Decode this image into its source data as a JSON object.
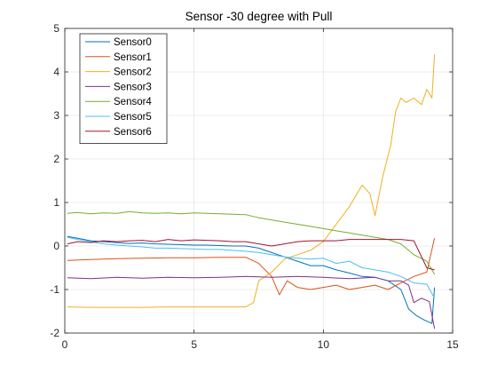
{
  "chart_data": {
    "type": "line",
    "title": "Sensor -30 degree with Pull",
    "xlabel": "",
    "ylabel": "",
    "xlim": [
      0,
      15
    ],
    "ylim": [
      -2,
      5
    ],
    "xticks": [
      0,
      5,
      10,
      15
    ],
    "yticks": [
      -2,
      -1,
      0,
      1,
      2,
      3,
      4,
      5
    ],
    "grid": true,
    "legend_position": "top-left",
    "series": [
      {
        "name": "Sensor0",
        "color": "#0072BD",
        "points": [
          [
            0.1,
            0.22
          ],
          [
            0.5,
            0.18
          ],
          [
            1.0,
            0.12
          ],
          [
            1.5,
            0.1
          ],
          [
            2.0,
            0.08
          ],
          [
            2.5,
            0.06
          ],
          [
            3.0,
            0.07
          ],
          [
            3.5,
            0.05
          ],
          [
            4.0,
            0.04
          ],
          [
            4.5,
            0.03
          ],
          [
            5.0,
            0.02
          ],
          [
            5.5,
            0.02
          ],
          [
            6.0,
            0.01
          ],
          [
            6.5,
            0.0
          ],
          [
            7.0,
            0.0
          ],
          [
            7.5,
            -0.05
          ],
          [
            8.0,
            -0.15
          ],
          [
            8.5,
            -0.25
          ],
          [
            9.0,
            -0.35
          ],
          [
            9.5,
            -0.45
          ],
          [
            10.0,
            -0.45
          ],
          [
            10.5,
            -0.55
          ],
          [
            11.0,
            -0.62
          ],
          [
            11.5,
            -0.7
          ],
          [
            12.0,
            -0.72
          ],
          [
            12.5,
            -0.8
          ],
          [
            13.0,
            -1.0
          ],
          [
            13.3,
            -1.45
          ],
          [
            13.6,
            -1.6
          ],
          [
            13.9,
            -1.7
          ],
          [
            14.2,
            -1.78
          ],
          [
            14.3,
            -0.95
          ]
        ]
      },
      {
        "name": "Sensor1",
        "color": "#D95319",
        "points": [
          [
            0.1,
            -0.33
          ],
          [
            1.0,
            -0.31
          ],
          [
            2.0,
            -0.29
          ],
          [
            3.0,
            -0.28
          ],
          [
            4.0,
            -0.27
          ],
          [
            5.0,
            -0.27
          ],
          [
            6.0,
            -0.26
          ],
          [
            7.0,
            -0.26
          ],
          [
            7.5,
            -0.4
          ],
          [
            8.0,
            -0.7
          ],
          [
            8.3,
            -1.12
          ],
          [
            8.6,
            -0.8
          ],
          [
            9.0,
            -0.95
          ],
          [
            9.5,
            -1.0
          ],
          [
            10.0,
            -0.95
          ],
          [
            10.5,
            -0.9
          ],
          [
            11.0,
            -1.0
          ],
          [
            11.5,
            -0.95
          ],
          [
            12.0,
            -0.9
          ],
          [
            12.5,
            -1.0
          ],
          [
            13.0,
            -0.85
          ],
          [
            13.5,
            -0.7
          ],
          [
            14.0,
            -0.6
          ],
          [
            14.3,
            0.18
          ]
        ]
      },
      {
        "name": "Sensor2",
        "color": "#EDB120",
        "points": [
          [
            0.1,
            -1.4
          ],
          [
            1.0,
            -1.41
          ],
          [
            2.0,
            -1.41
          ],
          [
            3.0,
            -1.41
          ],
          [
            4.0,
            -1.4
          ],
          [
            5.0,
            -1.4
          ],
          [
            6.0,
            -1.4
          ],
          [
            7.0,
            -1.4
          ],
          [
            7.3,
            -1.3
          ],
          [
            7.5,
            -0.8
          ],
          [
            8.0,
            -0.6
          ],
          [
            8.5,
            -0.3
          ],
          [
            9.0,
            -0.2
          ],
          [
            9.5,
            -0.1
          ],
          [
            10.0,
            0.1
          ],
          [
            10.5,
            0.5
          ],
          [
            11.0,
            0.9
          ],
          [
            11.3,
            1.2
          ],
          [
            11.5,
            1.4
          ],
          [
            11.8,
            1.2
          ],
          [
            12.0,
            0.7
          ],
          [
            12.3,
            1.6
          ],
          [
            12.6,
            2.3
          ],
          [
            12.8,
            3.1
          ],
          [
            13.0,
            3.4
          ],
          [
            13.2,
            3.3
          ],
          [
            13.5,
            3.4
          ],
          [
            13.8,
            3.25
          ],
          [
            14.0,
            3.6
          ],
          [
            14.2,
            3.4
          ],
          [
            14.3,
            4.4
          ]
        ]
      },
      {
        "name": "Sensor3",
        "color": "#7E2F8E",
        "points": [
          [
            0.1,
            -0.73
          ],
          [
            1.0,
            -0.75
          ],
          [
            2.0,
            -0.72
          ],
          [
            3.0,
            -0.74
          ],
          [
            4.0,
            -0.72
          ],
          [
            5.0,
            -0.73
          ],
          [
            6.0,
            -0.72
          ],
          [
            7.0,
            -0.7
          ],
          [
            8.0,
            -0.72
          ],
          [
            9.0,
            -0.7
          ],
          [
            10.0,
            -0.72
          ],
          [
            11.0,
            -0.75
          ],
          [
            12.0,
            -0.72
          ],
          [
            12.5,
            -0.8
          ],
          [
            13.0,
            -0.8
          ],
          [
            13.3,
            -0.9
          ],
          [
            13.5,
            -1.3
          ],
          [
            13.8,
            -1.2
          ],
          [
            14.1,
            -1.28
          ],
          [
            14.3,
            -1.9
          ]
        ]
      },
      {
        "name": "Sensor4",
        "color": "#77AC30",
        "points": [
          [
            0.1,
            0.75
          ],
          [
            0.5,
            0.77
          ],
          [
            1.0,
            0.74
          ],
          [
            1.5,
            0.76
          ],
          [
            2.0,
            0.75
          ],
          [
            2.5,
            0.79
          ],
          [
            3.0,
            0.76
          ],
          [
            3.5,
            0.75
          ],
          [
            4.0,
            0.76
          ],
          [
            4.5,
            0.74
          ],
          [
            5.0,
            0.76
          ],
          [
            5.5,
            0.75
          ],
          [
            6.0,
            0.74
          ],
          [
            6.5,
            0.73
          ],
          [
            7.0,
            0.72
          ],
          [
            7.5,
            0.65
          ],
          [
            8.0,
            0.6
          ],
          [
            8.5,
            0.55
          ],
          [
            9.0,
            0.5
          ],
          [
            9.5,
            0.45
          ],
          [
            10.0,
            0.4
          ],
          [
            10.5,
            0.35
          ],
          [
            11.0,
            0.3
          ],
          [
            11.5,
            0.25
          ],
          [
            12.0,
            0.2
          ],
          [
            12.5,
            0.15
          ],
          [
            13.0,
            0.05
          ],
          [
            13.5,
            -0.2
          ],
          [
            14.0,
            -0.35
          ],
          [
            14.3,
            -0.65
          ]
        ]
      },
      {
        "name": "Sensor5",
        "color": "#4DBEEE",
        "points": [
          [
            0.1,
            0.2
          ],
          [
            0.5,
            0.15
          ],
          [
            1.0,
            0.1
          ],
          [
            1.5,
            0.05
          ],
          [
            2.0,
            0.02
          ],
          [
            2.5,
            0.0
          ],
          [
            3.0,
            -0.02
          ],
          [
            3.5,
            -0.05
          ],
          [
            4.0,
            -0.05
          ],
          [
            4.5,
            -0.06
          ],
          [
            5.0,
            -0.07
          ],
          [
            5.5,
            -0.08
          ],
          [
            6.0,
            -0.08
          ],
          [
            6.5,
            -0.1
          ],
          [
            7.0,
            -0.12
          ],
          [
            7.5,
            -0.15
          ],
          [
            8.0,
            -0.2
          ],
          [
            8.5,
            -0.25
          ],
          [
            9.0,
            -0.28
          ],
          [
            9.5,
            -0.3
          ],
          [
            10.0,
            -0.28
          ],
          [
            10.5,
            -0.4
          ],
          [
            11.0,
            -0.35
          ],
          [
            11.5,
            -0.5
          ],
          [
            12.0,
            -0.55
          ],
          [
            12.5,
            -0.6
          ],
          [
            13.0,
            -0.7
          ],
          [
            13.5,
            -0.85
          ],
          [
            14.0,
            -0.88
          ],
          [
            14.3,
            -1.2
          ]
        ]
      },
      {
        "name": "Sensor6",
        "color": "#A2142F",
        "points": [
          [
            0.1,
            0.05
          ],
          [
            0.5,
            0.1
          ],
          [
            1.0,
            0.08
          ],
          [
            1.5,
            0.12
          ],
          [
            2.0,
            0.1
          ],
          [
            2.5,
            0.12
          ],
          [
            3.0,
            0.13
          ],
          [
            3.5,
            0.1
          ],
          [
            4.0,
            0.15
          ],
          [
            4.5,
            0.12
          ],
          [
            5.0,
            0.14
          ],
          [
            5.5,
            0.13
          ],
          [
            6.0,
            0.12
          ],
          [
            6.5,
            0.1
          ],
          [
            7.0,
            0.1
          ],
          [
            7.5,
            0.05
          ],
          [
            8.0,
            0.0
          ],
          [
            8.5,
            0.05
          ],
          [
            9.0,
            0.1
          ],
          [
            9.5,
            0.12
          ],
          [
            10.0,
            0.12
          ],
          [
            10.5,
            0.12
          ],
          [
            11.0,
            0.15
          ],
          [
            11.5,
            0.15
          ],
          [
            12.0,
            0.15
          ],
          [
            12.5,
            0.15
          ],
          [
            13.0,
            0.15
          ],
          [
            13.5,
            0.12
          ],
          [
            14.0,
            -0.5
          ],
          [
            14.3,
            -0.55
          ]
        ]
      }
    ]
  }
}
